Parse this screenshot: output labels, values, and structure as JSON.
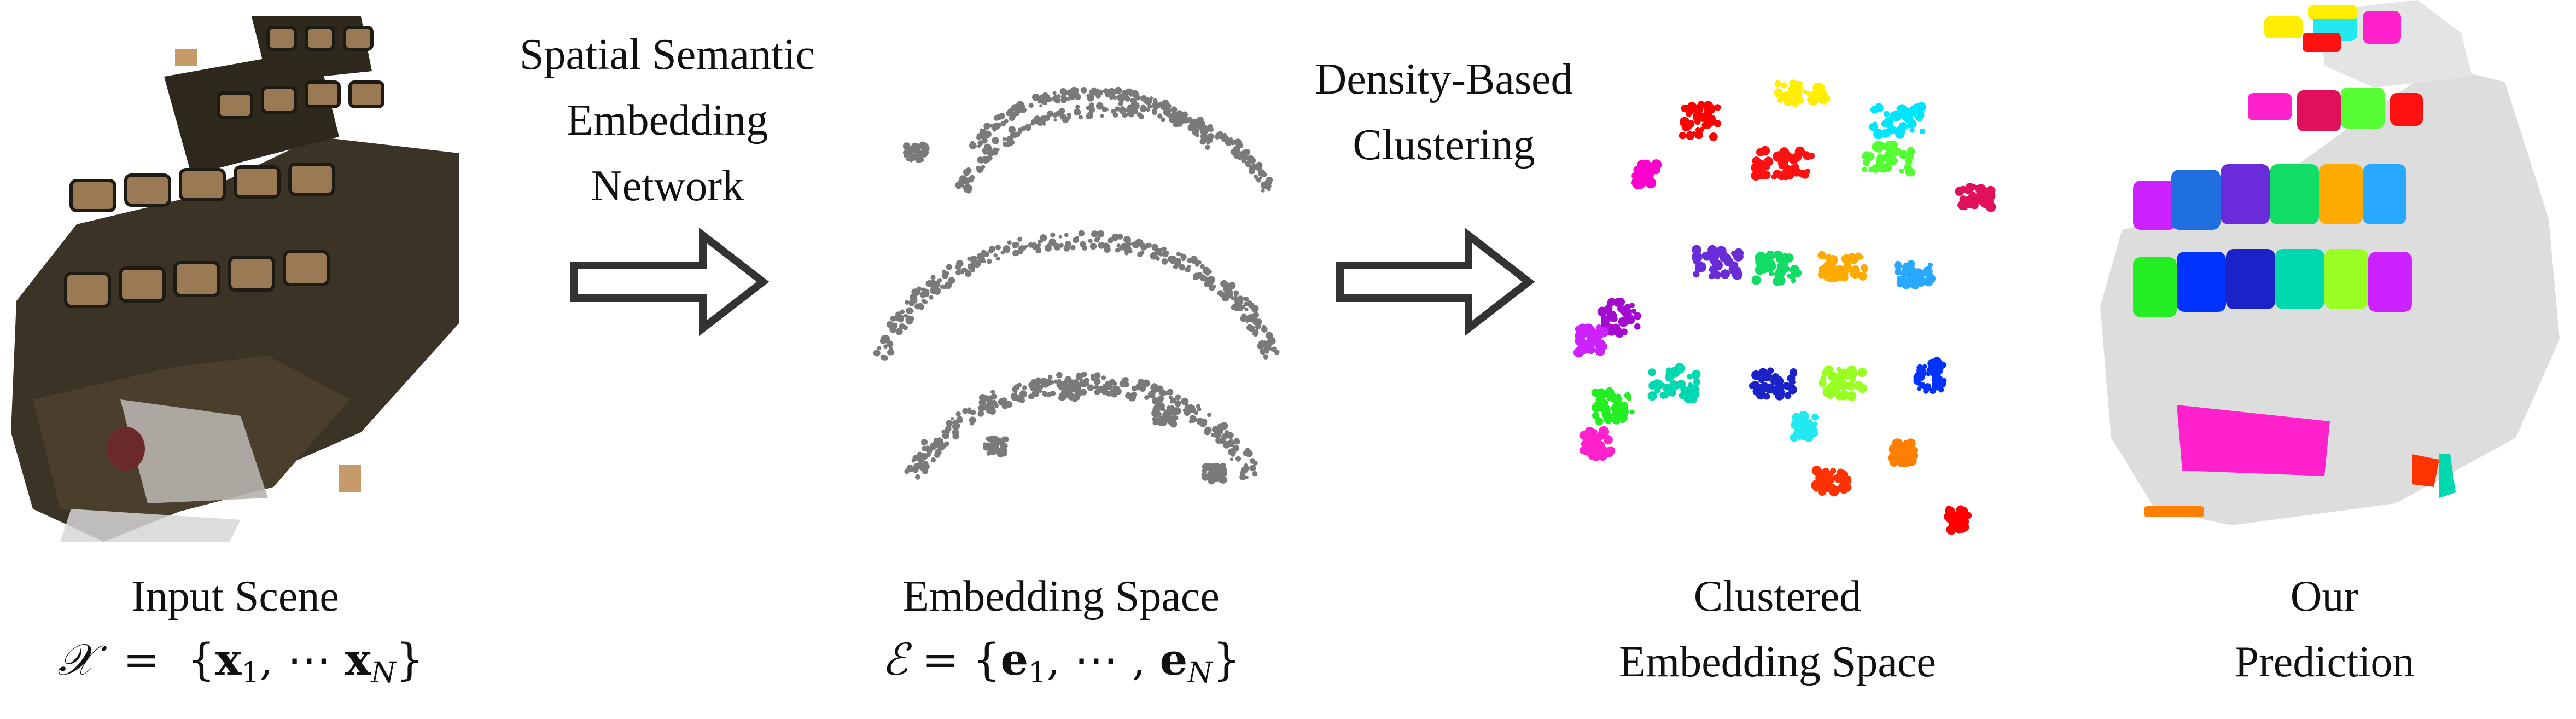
{
  "steps": {
    "network_label": [
      "Spatial Semantic",
      "Embedding",
      "Network"
    ],
    "clustering_label": [
      "Density-Based",
      "Clustering"
    ]
  },
  "captions": {
    "input": {
      "title": "Input Scene",
      "math_lhs": "𝒳",
      "math_eq": "=",
      "math_set_open": "{",
      "math_x": "x",
      "math_sub1": "1",
      "math_dots": ", ⋯ ",
      "math_sub_n": "N",
      "math_set_close": "}"
    },
    "embedding": {
      "title": "Embedding Space",
      "math_lhs": "ℰ",
      "math_eq": "=",
      "math_set_open": "{",
      "math_e": "e",
      "math_sub1": "1",
      "math_dots": ", ⋯ , ",
      "math_sub_n": "N",
      "math_set_close": "}"
    },
    "clustered": [
      "Clustered",
      "Embedding Space"
    ],
    "prediction": [
      "Our",
      "Prediction"
    ]
  },
  "colors": {
    "embedding_points": "#7a7a7a",
    "arrow_stroke": "#333333",
    "scene_dark": "#3b3326",
    "scene_seat": "#9a7a55",
    "prediction_bg": "#dddddd",
    "clusters": [
      "#ff0000",
      "#ffee00",
      "#00e5ff",
      "#ff00cc",
      "#ff1111",
      "#55ff33",
      "#e0105a",
      "#6a2bd8",
      "#11dd66",
      "#ffaa00",
      "#1f6fe0",
      "#29a8ff",
      "#a40ad0",
      "#cc22ff",
      "#00d9b0",
      "#1a22c8",
      "#99ff22",
      "#0033ff",
      "#22ee22",
      "#ff22cc",
      "#22e8f0",
      "#ff7f00",
      "#ff3300"
    ]
  }
}
